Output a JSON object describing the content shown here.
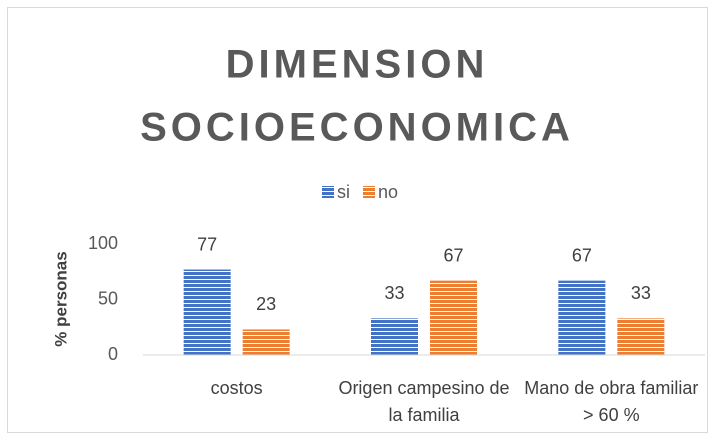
{
  "chart_data": {
    "type": "bar",
    "title_lines": [
      "DIMENSION",
      "SOCIOECONOMICA"
    ],
    "y_label": "% personas",
    "categories": [
      "costos",
      "Origen campesino de la familia",
      "Mano de obra familiar > 60 %"
    ],
    "series": [
      {
        "name": "si",
        "color": "#4472c4",
        "values": [
          77,
          33,
          67
        ]
      },
      {
        "name": "no",
        "color": "#ed7d31",
        "values": [
          23,
          67,
          33
        ]
      }
    ],
    "ylim": [
      0,
      100
    ],
    "yticks": [
      0,
      50,
      100
    ],
    "grid": false,
    "legend": "top"
  }
}
